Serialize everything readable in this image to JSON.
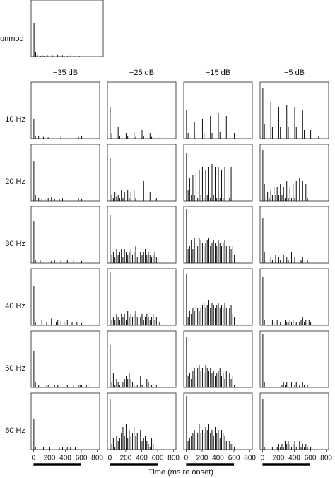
{
  "chart_data": {
    "type": "histogram-grid",
    "xlabel": "Time (ms re onset)",
    "bins": [
      0,
      20,
      40,
      60,
      80,
      100,
      120,
      140,
      160,
      180,
      200,
      220,
      240,
      260,
      280,
      300,
      320,
      340,
      360,
      380,
      400,
      420,
      440,
      460,
      480,
      500,
      520,
      540,
      560,
      580,
      600,
      620,
      640,
      660,
      680,
      700,
      720,
      740,
      760,
      780,
      800
    ],
    "xlim": [
      -30,
      830
    ],
    "xticks": [
      0,
      200,
      400,
      600,
      800
    ],
    "ylim": [
      0,
      100
    ],
    "stimulus": [
      0,
      600
    ],
    "color": "#111111",
    "unmod": {
      "label": "unmod",
      "values": [
        60,
        8,
        3,
        0,
        1,
        2,
        1,
        0,
        2,
        1,
        0,
        2,
        1,
        0,
        3,
        1,
        0,
        2,
        1,
        0,
        1,
        0,
        2,
        0,
        1,
        0,
        0,
        1,
        0,
        0,
        0,
        0,
        0,
        0,
        0,
        0,
        0,
        0,
        0,
        0
      ]
    },
    "columns": [
      "−35 dB",
      "−25 dB",
      "−15 dB",
      "−5 dB"
    ],
    "rows": [
      {
        "label": "10 Hz",
        "panels": [
          [
            35,
            4,
            0,
            5,
            0,
            0,
            3,
            0,
            0,
            2,
            0,
            0,
            0,
            0,
            0,
            0,
            0,
            4,
            0,
            0,
            0,
            0,
            5,
            0,
            0,
            0,
            0,
            0,
            3,
            0,
            5,
            0,
            0,
            0,
            2,
            0,
            0,
            0,
            0,
            0
          ],
          [
            55,
            10,
            0,
            0,
            0,
            20,
            5,
            0,
            0,
            0,
            10,
            4,
            0,
            0,
            0,
            12,
            3,
            0,
            0,
            0,
            15,
            4,
            0,
            0,
            0,
            10,
            3,
            0,
            0,
            0,
            8,
            0,
            0,
            0,
            0,
            0,
            0,
            0,
            0,
            0
          ],
          [
            50,
            10,
            0,
            0,
            0,
            30,
            8,
            0,
            0,
            0,
            35,
            10,
            0,
            0,
            0,
            40,
            10,
            0,
            0,
            0,
            45,
            12,
            0,
            0,
            0,
            40,
            10,
            0,
            0,
            0,
            10,
            0,
            0,
            0,
            0,
            0,
            0,
            0,
            0,
            0
          ],
          [
            90,
            25,
            0,
            0,
            0,
            65,
            20,
            0,
            0,
            0,
            55,
            20,
            0,
            0,
            0,
            60,
            20,
            0,
            0,
            0,
            55,
            20,
            0,
            0,
            0,
            50,
            15,
            0,
            0,
            0,
            15,
            0,
            0,
            0,
            0,
            5,
            0,
            0,
            0,
            0
          ]
        ]
      },
      {
        "label": "20 Hz",
        "panels": [
          [
            70,
            10,
            0,
            5,
            0,
            3,
            0,
            4,
            0,
            5,
            0,
            6,
            0,
            3,
            0,
            0,
            4,
            0,
            5,
            0,
            0,
            0,
            4,
            0,
            0,
            0,
            0,
            0,
            5,
            0,
            4,
            0,
            0,
            0,
            0,
            0,
            0,
            0,
            0,
            0
          ],
          [
            75,
            10,
            5,
            15,
            8,
            10,
            5,
            20,
            5,
            15,
            0,
            20,
            5,
            15,
            0,
            20,
            5,
            0,
            0,
            0,
            0,
            35,
            0,
            0,
            0,
            15,
            0,
            0,
            0,
            5,
            0,
            0,
            0,
            0,
            0,
            0,
            0,
            0,
            0,
            0
          ],
          [
            85,
            20,
            40,
            10,
            45,
            10,
            50,
            5,
            55,
            10,
            60,
            5,
            55,
            10,
            60,
            5,
            65,
            10,
            60,
            5,
            60,
            5,
            55,
            5,
            60,
            0,
            55,
            5,
            60,
            0,
            0,
            0,
            0,
            0,
            0,
            0,
            0,
            0,
            0,
            0
          ],
          [
            90,
            30,
            10,
            15,
            5,
            20,
            10,
            25,
            10,
            25,
            10,
            30,
            10,
            25,
            5,
            35,
            5,
            25,
            5,
            30,
            5,
            35,
            0,
            40,
            0,
            35,
            0,
            30,
            5,
            0,
            0,
            0,
            0,
            0,
            0,
            0,
            0,
            0,
            0,
            0
          ]
        ]
      },
      {
        "label": "30 Hz",
        "panels": [
          [
            75,
            5,
            0,
            0,
            5,
            0,
            0,
            0,
            0,
            0,
            0,
            4,
            0,
            6,
            0,
            0,
            0,
            6,
            0,
            0,
            0,
            5,
            0,
            0,
            0,
            6,
            0,
            0,
            0,
            0,
            4,
            0,
            0,
            0,
            0,
            0,
            0,
            0,
            0,
            0
          ],
          [
            85,
            15,
            20,
            10,
            25,
            15,
            20,
            25,
            10,
            25,
            20,
            15,
            20,
            25,
            15,
            20,
            30,
            10,
            25,
            20,
            15,
            20,
            25,
            15,
            20,
            15,
            10,
            15,
            20,
            10,
            10,
            0,
            0,
            0,
            0,
            0,
            0,
            0,
            0,
            0
          ],
          [
            95,
            25,
            30,
            40,
            25,
            45,
            35,
            30,
            45,
            40,
            35,
            30,
            35,
            40,
            45,
            30,
            35,
            40,
            35,
            30,
            40,
            35,
            30,
            35,
            40,
            30,
            35,
            30,
            25,
            30,
            15,
            0,
            0,
            0,
            0,
            0,
            0,
            0,
            0,
            0
          ],
          [
            80,
            20,
            5,
            0,
            0,
            10,
            5,
            0,
            15,
            0,
            10,
            5,
            0,
            15,
            0,
            10,
            5,
            0,
            20,
            0,
            10,
            0,
            15,
            0,
            5,
            10,
            0,
            0,
            5,
            0,
            0,
            0,
            0,
            0,
            0,
            0,
            0,
            0,
            0,
            0
          ]
        ]
      },
      {
        "label": "40 Hz",
        "panels": [
          [
            70,
            5,
            0,
            0,
            0,
            10,
            0,
            0,
            5,
            0,
            0,
            12,
            0,
            0,
            5,
            10,
            0,
            8,
            0,
            5,
            0,
            10,
            0,
            0,
            6,
            0,
            0,
            5,
            0,
            0,
            4,
            0,
            0,
            0,
            0,
            0,
            0,
            0,
            0,
            0
          ],
          [
            95,
            10,
            15,
            10,
            20,
            15,
            10,
            20,
            15,
            20,
            10,
            25,
            15,
            20,
            15,
            20,
            25,
            15,
            20,
            15,
            20,
            10,
            15,
            20,
            15,
            10,
            15,
            20,
            10,
            15,
            10,
            5,
            0,
            0,
            0,
            0,
            0,
            0,
            0,
            0
          ],
          [
            90,
            15,
            25,
            20,
            30,
            25,
            35,
            30,
            25,
            30,
            35,
            40,
            30,
            35,
            45,
            30,
            40,
            35,
            30,
            35,
            40,
            30,
            35,
            30,
            40,
            30,
            25,
            30,
            35,
            20,
            15,
            0,
            0,
            0,
            0,
            0,
            0,
            0,
            0,
            0
          ],
          [
            85,
            10,
            0,
            0,
            0,
            0,
            10,
            5,
            0,
            10,
            0,
            5,
            0,
            0,
            10,
            5,
            5,
            10,
            5,
            10,
            0,
            5,
            10,
            5,
            10,
            15,
            5,
            10,
            0,
            10,
            5,
            0,
            0,
            0,
            0,
            0,
            0,
            0,
            0,
            0
          ]
        ]
      },
      {
        "label": "50 Hz",
        "panels": [
          [
            65,
            10,
            0,
            5,
            0,
            0,
            0,
            5,
            0,
            5,
            0,
            0,
            0,
            5,
            0,
            5,
            0,
            0,
            0,
            0,
            0,
            5,
            0,
            0,
            0,
            5,
            0,
            0,
            5,
            5,
            5,
            0,
            0,
            5,
            5,
            0,
            0,
            0,
            0,
            0
          ],
          [
            75,
            10,
            25,
            5,
            15,
            10,
            5,
            0,
            10,
            15,
            20,
            15,
            25,
            15,
            10,
            5,
            0,
            5,
            10,
            20,
            5,
            0,
            0,
            15,
            10,
            0,
            5,
            0,
            0,
            5,
            0,
            0,
            0,
            0,
            0,
            0,
            0,
            0,
            0,
            0
          ],
          [
            90,
            20,
            25,
            15,
            30,
            35,
            20,
            35,
            40,
            30,
            35,
            25,
            40,
            35,
            30,
            35,
            25,
            30,
            20,
            25,
            30,
            35,
            20,
            25,
            15,
            30,
            20,
            25,
            15,
            20,
            5,
            0,
            0,
            0,
            0,
            0,
            0,
            0,
            0,
            0
          ],
          [
            95,
            10,
            0,
            0,
            0,
            0,
            0,
            0,
            0,
            0,
            0,
            0,
            5,
            10,
            5,
            10,
            0,
            0,
            10,
            0,
            5,
            10,
            0,
            5,
            0,
            10,
            5,
            0,
            5,
            0,
            0,
            0,
            0,
            0,
            0,
            0,
            0,
            0,
            0,
            0
          ]
        ]
      },
      {
        "label": "60 Hz",
        "panels": [
          [
            55,
            5,
            0,
            0,
            0,
            0,
            5,
            0,
            0,
            0,
            5,
            0,
            0,
            0,
            0,
            0,
            5,
            0,
            5,
            0,
            0,
            5,
            0,
            5,
            0,
            0,
            5,
            0,
            0,
            0,
            0,
            0,
            0,
            0,
            0,
            0,
            0,
            0,
            0,
            0
          ],
          [
            90,
            10,
            20,
            5,
            25,
            15,
            20,
            30,
            40,
            25,
            45,
            20,
            35,
            25,
            30,
            40,
            25,
            30,
            20,
            35,
            15,
            20,
            25,
            15,
            10,
            5,
            20,
            10,
            0,
            0,
            0,
            0,
            0,
            0,
            0,
            0,
            0,
            0,
            0,
            0
          ],
          [
            95,
            15,
            20,
            25,
            30,
            35,
            25,
            30,
            45,
            30,
            35,
            30,
            40,
            35,
            45,
            30,
            35,
            25,
            40,
            30,
            35,
            20,
            35,
            30,
            25,
            15,
            20,
            15,
            10,
            10,
            5,
            0,
            0,
            0,
            0,
            0,
            0,
            0,
            0,
            0
          ],
          [
            90,
            5,
            0,
            0,
            0,
            0,
            5,
            0,
            0,
            5,
            10,
            5,
            10,
            5,
            15,
            10,
            15,
            10,
            5,
            10,
            15,
            5,
            10,
            15,
            5,
            10,
            5,
            10,
            5,
            0,
            5,
            0,
            0,
            0,
            0,
            0,
            0,
            0,
            0,
            0
          ]
        ]
      }
    ]
  }
}
